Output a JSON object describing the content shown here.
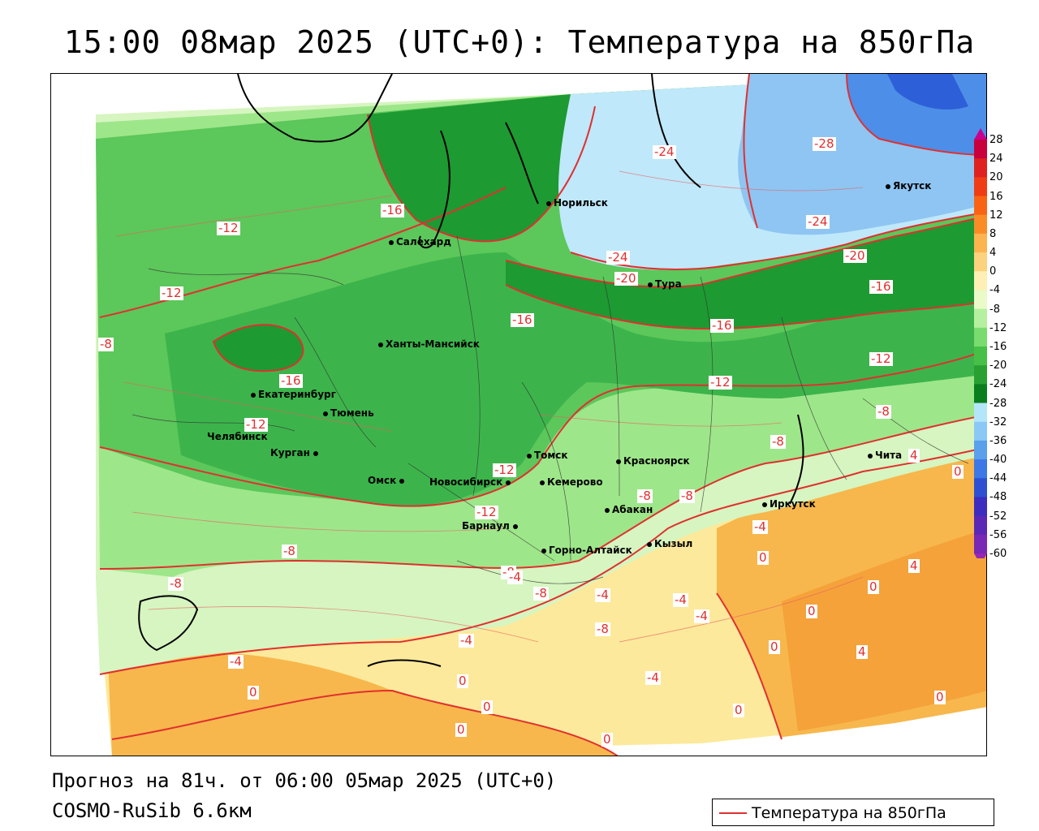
{
  "title": "15:00 08мар 2025 (UTC+0): Температура на 850гПа",
  "footer": {
    "forecast": "Прогноз на 81ч. от 06:00 05мар 2025 (UTC+0)",
    "model": "COSMO-RuSib 6.6км"
  },
  "legend": {
    "label": "Температура на 850гПа",
    "line_color": "#e03030"
  },
  "colorbar": {
    "unit": "temperature",
    "ticks": [
      "28",
      "24",
      "20",
      "16",
      "12",
      "8",
      "4",
      "0",
      "-4",
      "-8",
      "-12",
      "-16",
      "-20",
      "-24",
      "-28",
      "-32",
      "-36",
      "-40",
      "-44",
      "-48",
      "-52",
      "-56",
      "-60"
    ],
    "colors": [
      "#c8003c",
      "#e0201e",
      "#f03c14",
      "#f86414",
      "#fa8c28",
      "#fcb450",
      "#fdd27e",
      "#fef0b4",
      "#eafac8",
      "#b4f0a0",
      "#78dc6e",
      "#46c046",
      "#28a032",
      "#0a7d1e",
      "#b4e6fa",
      "#8cc8f5",
      "#5aa0eb",
      "#3c78e6",
      "#2d50d2",
      "#3c2dbe",
      "#5a28b4",
      "#7828b4",
      "#9628b4"
    ]
  },
  "cities": [
    {
      "name": "Норильск"
    },
    {
      "name": "Якутск"
    },
    {
      "name": "Салехард"
    },
    {
      "name": "Тура"
    },
    {
      "name": "Ханты-Мансийск"
    },
    {
      "name": "Екатеринбург"
    },
    {
      "name": "Тюмень"
    },
    {
      "name": "Челябинск"
    },
    {
      "name": "Курган"
    },
    {
      "name": "Омск"
    },
    {
      "name": "Новосибирск"
    },
    {
      "name": "Томск"
    },
    {
      "name": "Кемерово"
    },
    {
      "name": "Красноярск"
    },
    {
      "name": "Барнаул"
    },
    {
      "name": "Абакан"
    },
    {
      "name": "Кызыл"
    },
    {
      "name": "Горно-Алтайск"
    },
    {
      "name": "Иркутск"
    },
    {
      "name": "Чита"
    }
  ],
  "contour_labels": [
    "-24",
    "-28",
    "-24",
    "-24",
    "-20",
    "-20",
    "-16",
    "-16",
    "-16",
    "-16",
    "-16",
    "-12",
    "-12",
    "-12",
    "-12",
    "-12",
    "-12",
    "-12",
    "-8",
    "-8",
    "-8",
    "-8",
    "-8",
    "-8",
    "-8",
    "-8",
    "-8",
    "-8",
    "-4",
    "-4",
    "-4",
    "-4",
    "-4",
    "-4",
    "-4",
    "-4",
    "4",
    "4",
    "4",
    "0",
    "0",
    "0",
    "0",
    "0",
    "0",
    "0",
    "0",
    "0",
    "0",
    "0",
    "0"
  ],
  "colors": {
    "warm": "#f7b74c",
    "mild": "#fde99b",
    "pale_green": "#d6f5c0",
    "light_green": "#9ee68a",
    "green": "#5cc75a",
    "mid_green": "#3cb44b",
    "dark_green": "#1d9a31",
    "light_blue": "#bfe8fa",
    "blue": "#8ec5f2",
    "deep_blue": "#4d8ee8",
    "contour": "#e03030"
  }
}
